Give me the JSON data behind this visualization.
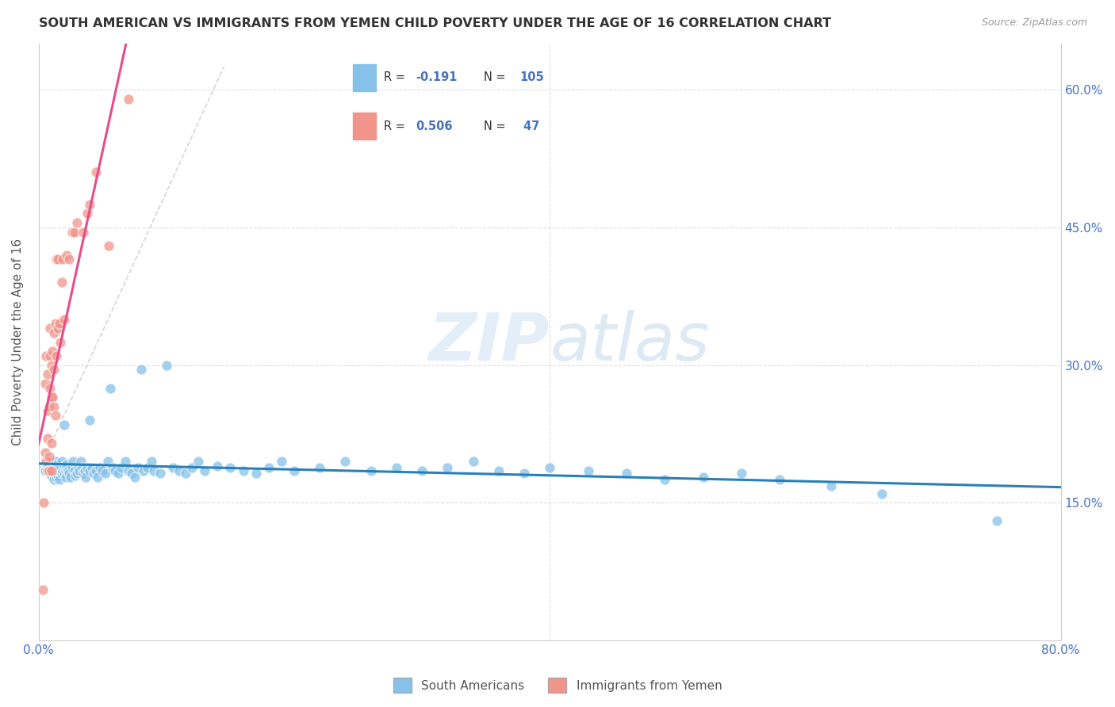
{
  "title": "SOUTH AMERICAN VS IMMIGRANTS FROM YEMEN CHILD POVERTY UNDER THE AGE OF 16 CORRELATION CHART",
  "source": "Source: ZipAtlas.com",
  "ylabel": "Child Poverty Under the Age of 16",
  "xlim": [
    0.0,
    0.8
  ],
  "ylim": [
    0.0,
    0.65
  ],
  "yticks": [
    0.15,
    0.3,
    0.45,
    0.6
  ],
  "ytick_labels": [
    "15.0%",
    "30.0%",
    "45.0%",
    "60.0%"
  ],
  "xticks": [
    0.0,
    0.1,
    0.2,
    0.3,
    0.4,
    0.5,
    0.6,
    0.7,
    0.8
  ],
  "blue_R": -0.191,
  "blue_N": 105,
  "pink_R": 0.506,
  "pink_N": 47,
  "blue_color": "#85c1e9",
  "pink_color": "#f1948a",
  "blue_line_color": "#2980b9",
  "pink_line_color": "#e74c8b",
  "diag_line_color": "#cccccc",
  "legend_blue_label": "South Americans",
  "legend_pink_label": "Immigrants from Yemen",
  "watermark_zip": "ZIP",
  "watermark_atlas": "atlas",
  "grid_color": "#dddddd",
  "axis_label_color": "#4472c4",
  "blue_x": [
    0.005,
    0.007,
    0.008,
    0.009,
    0.01,
    0.01,
    0.01,
    0.011,
    0.012,
    0.012,
    0.013,
    0.013,
    0.014,
    0.014,
    0.015,
    0.015,
    0.015,
    0.016,
    0.016,
    0.017,
    0.018,
    0.018,
    0.019,
    0.02,
    0.02,
    0.02,
    0.021,
    0.021,
    0.022,
    0.022,
    0.023,
    0.024,
    0.025,
    0.026,
    0.027,
    0.028,
    0.029,
    0.03,
    0.031,
    0.032,
    0.033,
    0.034,
    0.035,
    0.036,
    0.037,
    0.038,
    0.04,
    0.04,
    0.042,
    0.043,
    0.045,
    0.046,
    0.048,
    0.05,
    0.052,
    0.054,
    0.056,
    0.058,
    0.06,
    0.062,
    0.065,
    0.068,
    0.07,
    0.073,
    0.075,
    0.078,
    0.08,
    0.082,
    0.085,
    0.088,
    0.09,
    0.095,
    0.1,
    0.105,
    0.11,
    0.115,
    0.12,
    0.125,
    0.13,
    0.14,
    0.15,
    0.16,
    0.17,
    0.18,
    0.19,
    0.2,
    0.22,
    0.24,
    0.26,
    0.28,
    0.3,
    0.32,
    0.34,
    0.36,
    0.38,
    0.4,
    0.43,
    0.46,
    0.49,
    0.52,
    0.55,
    0.58,
    0.62,
    0.66,
    0.75
  ],
  "blue_y": [
    0.185,
    0.19,
    0.182,
    0.195,
    0.188,
    0.192,
    0.18,
    0.185,
    0.175,
    0.19,
    0.182,
    0.195,
    0.185,
    0.178,
    0.188,
    0.192,
    0.18,
    0.185,
    0.175,
    0.188,
    0.182,
    0.195,
    0.185,
    0.235,
    0.19,
    0.182,
    0.185,
    0.178,
    0.188,
    0.192,
    0.185,
    0.182,
    0.178,
    0.188,
    0.195,
    0.185,
    0.18,
    0.182,
    0.188,
    0.185,
    0.195,
    0.188,
    0.182,
    0.185,
    0.178,
    0.188,
    0.24,
    0.185,
    0.188,
    0.182,
    0.185,
    0.178,
    0.188,
    0.185,
    0.182,
    0.195,
    0.275,
    0.188,
    0.185,
    0.182,
    0.188,
    0.195,
    0.185,
    0.182,
    0.178,
    0.188,
    0.295,
    0.185,
    0.188,
    0.195,
    0.185,
    0.182,
    0.3,
    0.188,
    0.185,
    0.182,
    0.188,
    0.195,
    0.185,
    0.19,
    0.188,
    0.185,
    0.182,
    0.188,
    0.195,
    0.185,
    0.188,
    0.195,
    0.185,
    0.188,
    0.185,
    0.188,
    0.195,
    0.185,
    0.182,
    0.188,
    0.185,
    0.182,
    0.175,
    0.178,
    0.182,
    0.175,
    0.168,
    0.16,
    0.13
  ],
  "pink_x": [
    0.003,
    0.004,
    0.005,
    0.005,
    0.006,
    0.006,
    0.007,
    0.007,
    0.007,
    0.007,
    0.008,
    0.008,
    0.008,
    0.009,
    0.009,
    0.009,
    0.01,
    0.01,
    0.01,
    0.01,
    0.011,
    0.011,
    0.012,
    0.012,
    0.012,
    0.013,
    0.013,
    0.014,
    0.014,
    0.015,
    0.015,
    0.016,
    0.017,
    0.018,
    0.019,
    0.02,
    0.022,
    0.024,
    0.026,
    0.028,
    0.03,
    0.035,
    0.038,
    0.04,
    0.045,
    0.055,
    0.07
  ],
  "pink_y": [
    0.055,
    0.15,
    0.205,
    0.28,
    0.195,
    0.31,
    0.185,
    0.22,
    0.25,
    0.29,
    0.185,
    0.2,
    0.255,
    0.275,
    0.31,
    0.34,
    0.185,
    0.215,
    0.265,
    0.3,
    0.265,
    0.315,
    0.255,
    0.295,
    0.335,
    0.245,
    0.345,
    0.31,
    0.415,
    0.34,
    0.415,
    0.345,
    0.325,
    0.39,
    0.415,
    0.35,
    0.42,
    0.415,
    0.445,
    0.445,
    0.455,
    0.445,
    0.465,
    0.475,
    0.51,
    0.43,
    0.59
  ],
  "pink_line_x": [
    0.0,
    0.16
  ],
  "blue_line_x": [
    0.0,
    0.8
  ]
}
